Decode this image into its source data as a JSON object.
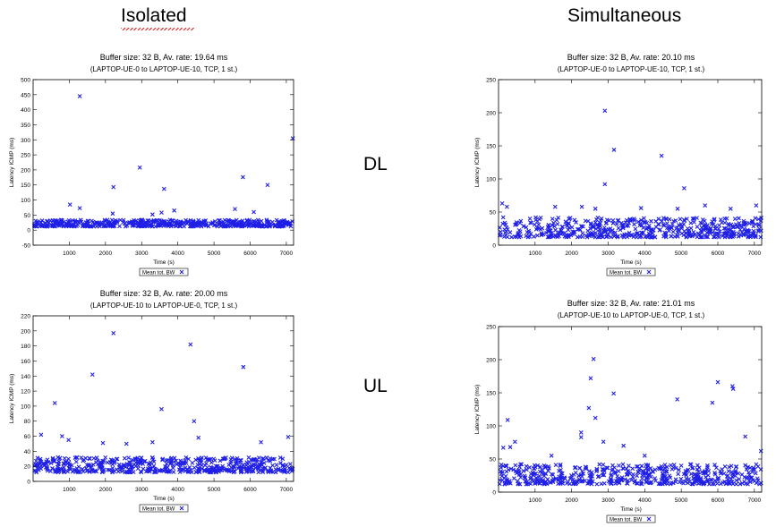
{
  "headings": {
    "isolated": "Isolated",
    "simultaneous": "Simultaneous"
  },
  "row_labels": {
    "dl": "DL",
    "ul": "UL"
  },
  "chart_data": [
    {
      "type": "scatter",
      "title": "Buffer size: 32 B, Av. rate: 19.64 ms",
      "subtitle": "(LAPTOP-UE-0 to LAPTOP-UE-10, TCP, 1 st.)",
      "xlabel": "Time (s)",
      "ylabel": "Latency ICMP (ms)",
      "xlim": [
        0,
        7200
      ],
      "ylim": [
        -50,
        500
      ],
      "xticks": [
        1000,
        2000,
        3000,
        4000,
        5000,
        6000,
        7000
      ],
      "yticks": [
        -50,
        0,
        50,
        100,
        150,
        200,
        250,
        300,
        350,
        400,
        450,
        500
      ],
      "legend": "Mean tot. BW",
      "band": [
        12,
        34
      ],
      "outliers": [
        [
          1290,
          445
        ],
        [
          1290,
          73
        ],
        [
          1020,
          85
        ],
        [
          2220,
          143
        ],
        [
          2950,
          208
        ],
        [
          3620,
          137
        ],
        [
          3900,
          65
        ],
        [
          5580,
          70
        ],
        [
          5800,
          176
        ],
        [
          6480,
          150
        ],
        [
          7180,
          305
        ],
        [
          3300,
          52
        ],
        [
          2200,
          55
        ],
        [
          3550,
          58
        ],
        [
          6100,
          60
        ]
      ]
    },
    {
      "type": "scatter",
      "title": "Buffer size: 32 B, Av. rate: 20.10 ms",
      "subtitle": "(LAPTOP-UE-0 to LAPTOP-UE-10, TCP, 1 st.)",
      "xlabel": "Time (s)",
      "ylabel": "Latency ICMP (ms)",
      "xlim": [
        0,
        7200
      ],
      "ylim": [
        0,
        250
      ],
      "xticks": [
        1000,
        2000,
        3000,
        4000,
        5000,
        6000,
        7000
      ],
      "yticks": [
        0,
        50,
        100,
        150,
        200,
        250
      ],
      "legend": "Mean tot. BW",
      "band": [
        12,
        42
      ],
      "outliers": [
        [
          2910,
          203
        ],
        [
          3160,
          144
        ],
        [
          4460,
          135
        ],
        [
          2910,
          92
        ],
        [
          5080,
          86
        ],
        [
          100,
          63
        ],
        [
          230,
          58
        ],
        [
          1550,
          58
        ],
        [
          2280,
          58
        ],
        [
          2650,
          55
        ],
        [
          3900,
          56
        ],
        [
          4900,
          55
        ],
        [
          5650,
          60
        ],
        [
          6350,
          55
        ],
        [
          7050,
          60
        ]
      ]
    },
    {
      "type": "scatter",
      "title": "Buffer size: 32 B, Av. rate: 20.00 ms",
      "subtitle": "(LAPTOP-UE-10 to LAPTOP-UE-0, TCP, 1 st.)",
      "xlabel": "Time (s)",
      "ylabel": "Latency ICMP (ms)",
      "xlim": [
        0,
        7200
      ],
      "ylim": [
        0,
        220
      ],
      "xticks": [
        1000,
        2000,
        3000,
        4000,
        5000,
        6000,
        7000
      ],
      "yticks": [
        0,
        20,
        40,
        60,
        80,
        100,
        120,
        140,
        160,
        180,
        200,
        220
      ],
      "legend": "Mean tot. BW",
      "band": [
        12,
        32
      ],
      "outliers": [
        [
          2220,
          197
        ],
        [
          4350,
          182
        ],
        [
          5810,
          152
        ],
        [
          1640,
          142
        ],
        [
          600,
          104
        ],
        [
          3550,
          96
        ],
        [
          4450,
          80
        ],
        [
          4570,
          58
        ],
        [
          800,
          60
        ],
        [
          7050,
          59
        ],
        [
          220,
          62
        ],
        [
          1930,
          51
        ],
        [
          3300,
          52
        ],
        [
          6300,
          52
        ],
        [
          980,
          55
        ],
        [
          2580,
          50
        ]
      ]
    },
    {
      "type": "scatter",
      "title": "Buffer size: 32 B, Av. rate: 21.01 ms",
      "subtitle": "(LAPTOP-UE-10 to LAPTOP-UE-0, TCP, 1 st.)",
      "xlabel": "Time (s)",
      "ylabel": "Latency ICMP (ms)",
      "xlim": [
        0,
        7200
      ],
      "ylim": [
        0,
        250
      ],
      "xticks": [
        1000,
        2000,
        3000,
        4000,
        5000,
        6000,
        7000
      ],
      "yticks": [
        0,
        50,
        100,
        150,
        200,
        250
      ],
      "legend": "Mean tot. BW",
      "band": [
        12,
        42
      ],
      "outliers": [
        [
          2600,
          201
        ],
        [
          2520,
          172
        ],
        [
          6000,
          166
        ],
        [
          6400,
          160
        ],
        [
          6420,
          156
        ],
        [
          3150,
          149
        ],
        [
          4890,
          140
        ],
        [
          5850,
          135
        ],
        [
          2470,
          127
        ],
        [
          2650,
          112
        ],
        [
          250,
          109
        ],
        [
          2260,
          90
        ],
        [
          2260,
          83
        ],
        [
          6750,
          84
        ],
        [
          450,
          76
        ],
        [
          320,
          68
        ],
        [
          130,
          67
        ],
        [
          2870,
          76
        ],
        [
          3420,
          70
        ],
        [
          7180,
          62
        ],
        [
          1450,
          55
        ],
        [
          4000,
          55
        ]
      ]
    }
  ]
}
